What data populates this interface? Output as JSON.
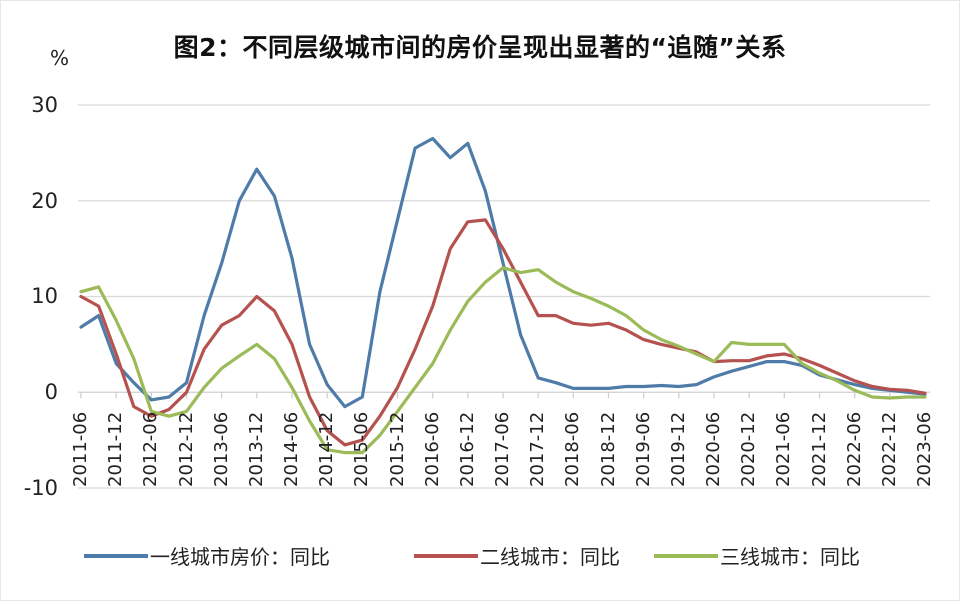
{
  "chart_data": {
    "type": "line",
    "title": "图2：不同层级城市间的房价呈现出显著的“追随”关系",
    "ylabel": "%",
    "xlabel": "",
    "ylim": [
      -10,
      30
    ],
    "yticks": [
      "30",
      "20",
      "10",
      "0",
      "-10"
    ],
    "grid": "horizontal",
    "legend_position": "bottom",
    "x_tick_labels": [
      "2011-06",
      "2011-12",
      "2012-06",
      "2012-12",
      "2013-06",
      "2013-12",
      "2014-06",
      "2014-12",
      "2015-06",
      "2015-12",
      "2016-06",
      "2016-12",
      "2017-06",
      "2017-12",
      "2018-06",
      "2018-12",
      "2019-06",
      "2019-12",
      "2020-06",
      "2020-12",
      "2021-06",
      "2021-12",
      "2022-06",
      "2022-12",
      "2023-06"
    ],
    "x": [
      "2011-06",
      "2011-09",
      "2011-12",
      "2012-03",
      "2012-06",
      "2012-09",
      "2012-12",
      "2013-03",
      "2013-06",
      "2013-09",
      "2013-12",
      "2014-03",
      "2014-06",
      "2014-09",
      "2014-12",
      "2015-03",
      "2015-06",
      "2015-09",
      "2015-12",
      "2016-03",
      "2016-06",
      "2016-09",
      "2016-12",
      "2017-03",
      "2017-06",
      "2017-09",
      "2017-12",
      "2018-03",
      "2018-06",
      "2018-09",
      "2018-12",
      "2019-03",
      "2019-06",
      "2019-09",
      "2019-12",
      "2020-03",
      "2020-06",
      "2020-09",
      "2020-12",
      "2021-03",
      "2021-06",
      "2021-09",
      "2021-12",
      "2022-03",
      "2022-06",
      "2022-09",
      "2022-12",
      "2023-03",
      "2023-06"
    ],
    "series": [
      {
        "name": "一线城市房价：同比",
        "color": "#4f7ba8",
        "values": [
          6.8,
          8.0,
          3.0,
          1.0,
          -0.8,
          -0.5,
          1.0,
          8.0,
          13.5,
          20.0,
          23.3,
          20.5,
          14.0,
          5.0,
          0.8,
          -1.5,
          -0.5,
          10.5,
          18.0,
          25.5,
          26.5,
          24.5,
          26.0,
          21.0,
          13.5,
          6.0,
          1.5,
          1.0,
          0.4,
          0.4,
          0.4,
          0.6,
          0.6,
          0.7,
          0.6,
          0.8,
          1.6,
          2.2,
          2.7,
          3.2,
          3.2,
          2.8,
          1.8,
          1.3,
          0.8,
          0.4,
          0.2,
          0.0,
          -0.2
        ]
      },
      {
        "name": "二线城市：同比",
        "color": "#b5524f",
        "values": [
          10.0,
          9.0,
          4.0,
          -1.5,
          -2.5,
          -1.8,
          0.0,
          4.5,
          7.0,
          8.0,
          10.0,
          8.5,
          5.0,
          -0.5,
          -4.0,
          -5.5,
          -5.0,
          -2.5,
          0.5,
          4.5,
          9.0,
          15.0,
          17.8,
          18.0,
          15.0,
          11.5,
          8.0,
          8.0,
          7.2,
          7.0,
          7.2,
          6.5,
          5.5,
          5.0,
          4.6,
          4.2,
          3.2,
          3.3,
          3.3,
          3.8,
          4.0,
          3.5,
          2.8,
          2.0,
          1.2,
          0.6,
          0.3,
          0.2,
          -0.1
        ]
      },
      {
        "name": "三线城市：同比",
        "color": "#9bbb59",
        "values": [
          10.5,
          11.0,
          7.5,
          3.5,
          -2.0,
          -2.5,
          -2.0,
          0.5,
          2.5,
          3.8,
          5.0,
          3.5,
          0.5,
          -3.0,
          -6.0,
          -6.3,
          -6.3,
          -4.5,
          -2.0,
          0.5,
          3.0,
          6.5,
          9.5,
          11.5,
          13.0,
          12.5,
          12.8,
          11.5,
          10.5,
          9.8,
          9.0,
          8.0,
          6.5,
          5.5,
          4.8,
          4.0,
          3.2,
          5.2,
          5.0,
          5.0,
          5.0,
          3.0,
          2.0,
          1.2,
          0.2,
          -0.5,
          -0.6,
          -0.5,
          -0.5
        ]
      }
    ]
  }
}
